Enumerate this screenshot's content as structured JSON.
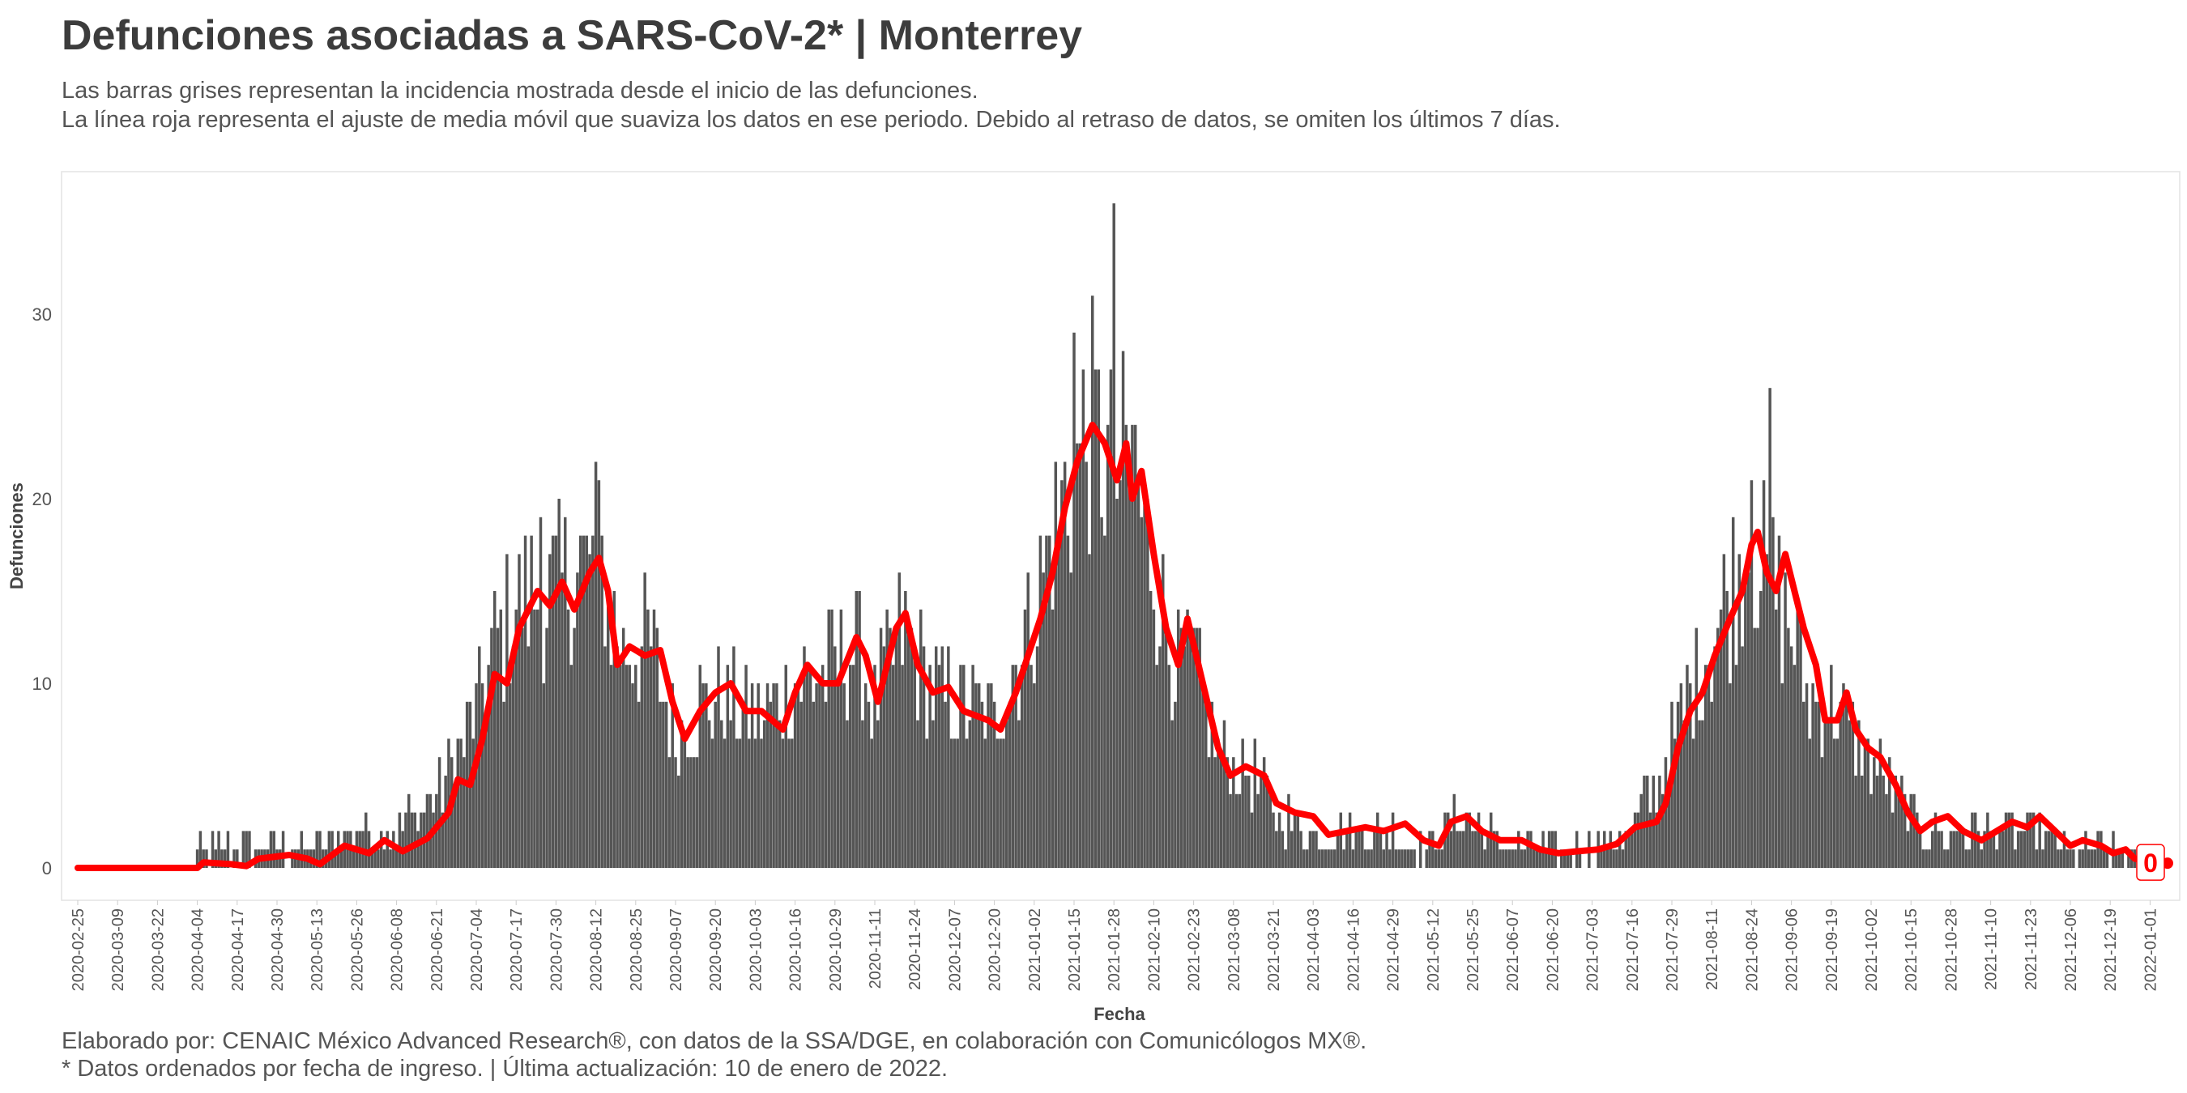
{
  "title": "Defunciones asociadas a SARS-CoV-2* | Monterrey",
  "subtitle_line1": "Las barras grises representan la incidencia mostrada desde el inicio de las defunciones.",
  "subtitle_line2": "La línea roja representa el ajuste de media móvil que suaviza los datos en ese periodo. Debido al retraso de datos, se omiten los últimos 7 días.",
  "caption_line1": "Elaborado por: CENAIC México Advanced Research®, con datos de la SSA/DGE, en colaboración con Comunicólogos MX®.",
  "caption_line2": "* Datos ordenados por fecha de ingreso. | Última actualización: 10 de enero de 2022.",
  "colors": {
    "bars": "#555555",
    "line": "#ff0000",
    "panel_border": "#e3e3e3"
  },
  "chart_data": {
    "type": "bar",
    "xlabel": "Fecha",
    "ylabel": "Defunciones",
    "x_start": "2020-02-25",
    "x_end": "2022-01-03",
    "ylim": [
      -1.5,
      36.5
    ],
    "yticks": [
      0,
      10,
      20,
      30
    ],
    "xticks": [
      "2020-02-25",
      "2020-03-09",
      "2020-03-22",
      "2020-04-04",
      "2020-04-17",
      "2020-04-30",
      "2020-05-13",
      "2020-05-26",
      "2020-06-08",
      "2020-06-21",
      "2020-07-04",
      "2020-07-17",
      "2020-07-30",
      "2020-08-12",
      "2020-08-25",
      "2020-09-07",
      "2020-09-20",
      "2020-10-03",
      "2020-10-16",
      "2020-10-29",
      "2020-11-11",
      "2020-11-24",
      "2020-12-07",
      "2020-12-20",
      "2021-01-02",
      "2021-01-15",
      "2021-01-28",
      "2021-02-10",
      "2021-02-23",
      "2021-03-08",
      "2021-03-21",
      "2021-04-03",
      "2021-04-16",
      "2021-04-29",
      "2021-05-12",
      "2021-05-25",
      "2021-06-07",
      "2021-06-20",
      "2021-07-03",
      "2021-07-16",
      "2021-07-29",
      "2021-08-11",
      "2021-08-24",
      "2021-09-06",
      "2021-09-19",
      "2021-10-02",
      "2021-10-15",
      "2021-10-28",
      "2021-11-10",
      "2021-11-23",
      "2021-12-06",
      "2021-12-19",
      "2022-01-01"
    ],
    "bars_series_description": "Defunciones diarias",
    "bars_keypoints": [
      [
        "2020-02-25",
        0
      ],
      [
        "2020-04-01",
        0
      ],
      [
        "2020-04-05",
        1
      ],
      [
        "2020-04-20",
        1
      ],
      [
        "2020-05-01",
        1
      ],
      [
        "2020-05-13",
        1
      ],
      [
        "2020-05-26",
        2
      ],
      [
        "2020-06-08",
        2
      ],
      [
        "2020-06-21",
        4
      ],
      [
        "2020-07-01",
        7
      ],
      [
        "2020-07-10",
        12
      ],
      [
        "2020-07-20",
        15
      ],
      [
        "2020-07-30",
        15
      ],
      [
        "2020-08-12",
        17
      ],
      [
        "2020-08-20",
        12
      ],
      [
        "2020-08-30",
        12
      ],
      [
        "2020-09-07",
        7
      ],
      [
        "2020-09-15",
        9
      ],
      [
        "2020-09-25",
        9
      ],
      [
        "2020-10-05",
        8
      ],
      [
        "2020-10-16",
        10
      ],
      [
        "2020-10-29",
        11
      ],
      [
        "2020-11-05",
        12
      ],
      [
        "2020-11-11",
        9
      ],
      [
        "2020-11-20",
        13
      ],
      [
        "2020-11-28",
        10
      ],
      [
        "2020-12-07",
        9
      ],
      [
        "2020-12-20",
        8
      ],
      [
        "2021-01-02",
        14
      ],
      [
        "2021-01-10",
        19
      ],
      [
        "2021-01-20",
        24
      ],
      [
        "2021-01-28",
        21
      ],
      [
        "2021-02-03",
        22
      ],
      [
        "2021-02-10",
        16
      ],
      [
        "2021-02-18",
        11
      ],
      [
        "2021-02-23",
        11
      ],
      [
        "2021-03-03",
        6
      ],
      [
        "2021-03-15",
        5
      ],
      [
        "2021-03-21",
        3
      ],
      [
        "2021-04-03",
        2
      ],
      [
        "2021-04-16",
        2
      ],
      [
        "2021-04-29",
        2
      ],
      [
        "2021-05-12",
        1
      ],
      [
        "2021-05-20",
        3
      ],
      [
        "2021-05-30",
        2
      ],
      [
        "2021-06-07",
        1
      ],
      [
        "2021-06-20",
        1
      ],
      [
        "2021-07-03",
        1
      ],
      [
        "2021-07-16",
        2
      ],
      [
        "2021-07-25",
        5
      ],
      [
        "2021-08-05",
        10
      ],
      [
        "2021-08-15",
        14
      ],
      [
        "2021-08-24",
        18
      ],
      [
        "2021-09-01",
        15
      ],
      [
        "2021-09-06",
        13
      ],
      [
        "2021-09-12",
        9
      ],
      [
        "2021-09-19",
        9
      ],
      [
        "2021-09-26",
        7
      ],
      [
        "2021-10-02",
        6
      ],
      [
        "2021-10-10",
        4
      ],
      [
        "2021-10-20",
        2
      ],
      [
        "2021-10-28",
        2
      ],
      [
        "2021-11-10",
        2
      ],
      [
        "2021-11-23",
        2
      ],
      [
        "2021-12-06",
        1
      ],
      [
        "2021-12-19",
        1
      ],
      [
        "2022-01-03",
        0
      ]
    ],
    "bars_peaks": [
      [
        "2020-08-12",
        22
      ],
      [
        "2021-01-28",
        36
      ],
      [
        "2021-01-15",
        29
      ],
      [
        "2021-08-30",
        26
      ],
      [
        "2021-08-24",
        21
      ],
      [
        "2020-07-25",
        19
      ],
      [
        "2021-02-03",
        24
      ]
    ],
    "line_series_description": "Media móvil",
    "line_points": [
      [
        "2020-02-25",
        0
      ],
      [
        "2020-04-04",
        0
      ],
      [
        "2020-04-06",
        0.3
      ],
      [
        "2020-04-15",
        0.2
      ],
      [
        "2020-04-20",
        0.1
      ],
      [
        "2020-04-24",
        0.5
      ],
      [
        "2020-05-04",
        0.7
      ],
      [
        "2020-05-10",
        0.5
      ],
      [
        "2020-05-14",
        0.2
      ],
      [
        "2020-05-22",
        1.2
      ],
      [
        "2020-05-30",
        0.8
      ],
      [
        "2020-06-04",
        1.5
      ],
      [
        "2020-06-10",
        0.9
      ],
      [
        "2020-06-18",
        1.6
      ],
      [
        "2020-06-25",
        3.0
      ],
      [
        "2020-06-28",
        4.8
      ],
      [
        "2020-07-02",
        4.5
      ],
      [
        "2020-07-06",
        7.0
      ],
      [
        "2020-07-10",
        10.5
      ],
      [
        "2020-07-14",
        10.0
      ],
      [
        "2020-07-18",
        13.0
      ],
      [
        "2020-07-24",
        15.0
      ],
      [
        "2020-07-28",
        14.2
      ],
      [
        "2020-08-01",
        15.5
      ],
      [
        "2020-08-05",
        14.0
      ],
      [
        "2020-08-10",
        16.0
      ],
      [
        "2020-08-13",
        16.8
      ],
      [
        "2020-08-16",
        15.0
      ],
      [
        "2020-08-19",
        11.0
      ],
      [
        "2020-08-23",
        12.0
      ],
      [
        "2020-08-28",
        11.5
      ],
      [
        "2020-09-02",
        11.8
      ],
      [
        "2020-09-06",
        9.0
      ],
      [
        "2020-09-10",
        7.0
      ],
      [
        "2020-09-15",
        8.5
      ],
      [
        "2020-09-20",
        9.5
      ],
      [
        "2020-09-25",
        10.0
      ],
      [
        "2020-09-30",
        8.5
      ],
      [
        "2020-10-05",
        8.5
      ],
      [
        "2020-10-12",
        7.5
      ],
      [
        "2020-10-16",
        9.5
      ],
      [
        "2020-10-20",
        11.0
      ],
      [
        "2020-10-25",
        10.0
      ],
      [
        "2020-10-30",
        10.0
      ],
      [
        "2020-11-05",
        12.5
      ],
      [
        "2020-11-08",
        11.5
      ],
      [
        "2020-11-12",
        9.0
      ],
      [
        "2020-11-18",
        13.0
      ],
      [
        "2020-11-21",
        13.8
      ],
      [
        "2020-11-25",
        11.0
      ],
      [
        "2020-11-30",
        9.5
      ],
      [
        "2020-12-05",
        9.8
      ],
      [
        "2020-12-10",
        8.5
      ],
      [
        "2020-12-18",
        8.0
      ],
      [
        "2020-12-22",
        7.5
      ],
      [
        "2020-12-27",
        9.5
      ],
      [
        "2020-12-31",
        11.5
      ],
      [
        "2021-01-04",
        13.5
      ],
      [
        "2021-01-08",
        16.0
      ],
      [
        "2021-01-12",
        19.5
      ],
      [
        "2021-01-16",
        22.0
      ],
      [
        "2021-01-21",
        24.0
      ],
      [
        "2021-01-25",
        23.0
      ],
      [
        "2021-01-29",
        21.0
      ],
      [
        "2021-02-01",
        23.0
      ],
      [
        "2021-02-03",
        20.0
      ],
      [
        "2021-02-06",
        21.5
      ],
      [
        "2021-02-10",
        17.0
      ],
      [
        "2021-02-14",
        13.0
      ],
      [
        "2021-02-18",
        11.0
      ],
      [
        "2021-02-21",
        13.5
      ],
      [
        "2021-02-26",
        10.0
      ],
      [
        "2021-03-03",
        6.5
      ],
      [
        "2021-03-07",
        5.0
      ],
      [
        "2021-03-12",
        5.5
      ],
      [
        "2021-03-18",
        5.0
      ],
      [
        "2021-03-22",
        3.5
      ],
      [
        "2021-03-28",
        3.0
      ],
      [
        "2021-04-03",
        2.8
      ],
      [
        "2021-04-08",
        1.8
      ],
      [
        "2021-04-14",
        2.0
      ],
      [
        "2021-04-20",
        2.2
      ],
      [
        "2021-04-26",
        2.0
      ],
      [
        "2021-05-03",
        2.4
      ],
      [
        "2021-05-09",
        1.5
      ],
      [
        "2021-05-14",
        1.2
      ],
      [
        "2021-05-18",
        2.5
      ],
      [
        "2021-05-23",
        2.8
      ],
      [
        "2021-05-28",
        2.0
      ],
      [
        "2021-06-03",
        1.5
      ],
      [
        "2021-06-10",
        1.5
      ],
      [
        "2021-06-16",
        1.0
      ],
      [
        "2021-06-22",
        0.8
      ],
      [
        "2021-06-28",
        0.9
      ],
      [
        "2021-07-05",
        1.0
      ],
      [
        "2021-07-11",
        1.3
      ],
      [
        "2021-07-17",
        2.2
      ],
      [
        "2021-07-24",
        2.5
      ],
      [
        "2021-07-27",
        3.5
      ],
      [
        "2021-07-31",
        6.5
      ],
      [
        "2021-08-04",
        8.5
      ],
      [
        "2021-08-08",
        9.5
      ],
      [
        "2021-08-12",
        11.5
      ],
      [
        "2021-08-17",
        13.5
      ],
      [
        "2021-08-21",
        15.0
      ],
      [
        "2021-08-24",
        17.5
      ],
      [
        "2021-08-26",
        18.2
      ],
      [
        "2021-08-29",
        16.0
      ],
      [
        "2021-09-01",
        15.0
      ],
      [
        "2021-09-04",
        17.0
      ],
      [
        "2021-09-07",
        15.0
      ],
      [
        "2021-09-10",
        13.0
      ],
      [
        "2021-09-14",
        11.0
      ],
      [
        "2021-09-17",
        8.0
      ],
      [
        "2021-09-21",
        8.0
      ],
      [
        "2021-09-24",
        9.5
      ],
      [
        "2021-09-27",
        7.5
      ],
      [
        "2021-10-01",
        6.5
      ],
      [
        "2021-10-05",
        6.0
      ],
      [
        "2021-10-10",
        4.5
      ],
      [
        "2021-10-14",
        3.0
      ],
      [
        "2021-10-18",
        2.0
      ],
      [
        "2021-10-22",
        2.5
      ],
      [
        "2021-10-27",
        2.8
      ],
      [
        "2021-11-01",
        2.0
      ],
      [
        "2021-11-07",
        1.5
      ],
      [
        "2021-11-12",
        2.0
      ],
      [
        "2021-11-17",
        2.5
      ],
      [
        "2021-11-22",
        2.2
      ],
      [
        "2021-11-26",
        2.8
      ],
      [
        "2021-12-01",
        2.0
      ],
      [
        "2021-12-06",
        1.2
      ],
      [
        "2021-12-10",
        1.5
      ],
      [
        "2021-12-16",
        1.2
      ],
      [
        "2021-12-20",
        0.8
      ],
      [
        "2021-12-24",
        1.0
      ],
      [
        "2021-12-27",
        0.5
      ],
      [
        "2022-01-03",
        0.3
      ]
    ],
    "end_label": "0"
  }
}
